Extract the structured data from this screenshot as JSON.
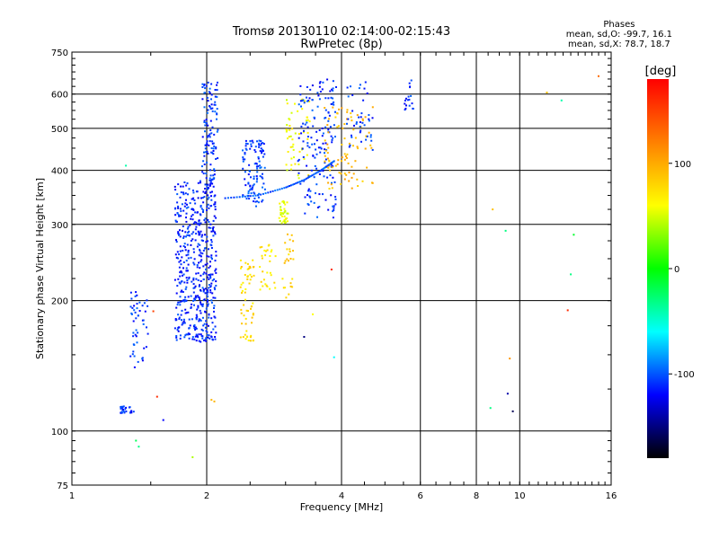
{
  "chart_data": {
    "type": "scatter",
    "title": "Tromsø 20130110 02:14:00-02:15:43",
    "subtitle": "RwPretec (8p)",
    "xlabel": "Frequency [MHz]",
    "ylabel": "Stationary phase Virtual Height [km]",
    "x_scale": "log",
    "y_scale": "log",
    "xlim": [
      1,
      16
    ],
    "ylim": [
      75,
      750
    ],
    "x_ticks": [
      1,
      2,
      4,
      6,
      8,
      10,
      16
    ],
    "y_ticks": [
      75,
      100,
      200,
      300,
      400,
      500,
      600,
      750
    ],
    "grid": true,
    "phase_stats": {
      "header": "Phases",
      "o_line": "mean, sd,O: -99.7, 16.1",
      "x_line": "mean, sd,X:  78.7, 18.7"
    },
    "colorbar": {
      "label": "[deg]",
      "range": [
        -180,
        180
      ],
      "ticks": [
        100,
        0,
        -100
      ],
      "colors": [
        "#ff0000",
        "#ff8000",
        "#ffff00",
        "#00ff00",
        "#00ffff",
        "#0000ff",
        "#000000"
      ]
    },
    "clusters": [
      {
        "fmin": 1.28,
        "fmax": 1.38,
        "hmin": 110,
        "hmax": 114,
        "n": 25,
        "phase": -110
      },
      {
        "fmin": 1.35,
        "fmax": 1.48,
        "hmin": 140,
        "hmax": 210,
        "n": 50,
        "phase": -108
      },
      {
        "fmin": 1.7,
        "fmax": 2.1,
        "hmin": 160,
        "hmax": 380,
        "n": 520,
        "phase": -112
      },
      {
        "fmin": 1.95,
        "fmax": 2.12,
        "hmin": 380,
        "hmax": 650,
        "n": 110,
        "phase": -108
      },
      {
        "fmin": 2.4,
        "fmax": 2.7,
        "hmin": 330,
        "hmax": 470,
        "n": 110,
        "phase": -106
      },
      {
        "fmin": 2.38,
        "fmax": 2.55,
        "hmin": 160,
        "hmax": 250,
        "n": 60,
        "phase": 75
      },
      {
        "fmin": 2.6,
        "fmax": 2.85,
        "hmin": 210,
        "hmax": 270,
        "n": 30,
        "phase": 70
      },
      {
        "fmin": 2.9,
        "fmax": 3.05,
        "hmin": 300,
        "hmax": 340,
        "n": 35,
        "phase": 55
      },
      {
        "fmin": 2.95,
        "fmax": 3.15,
        "hmin": 200,
        "hmax": 300,
        "n": 25,
        "phase": 80
      },
      {
        "fmin": 3.0,
        "fmax": 3.4,
        "hmin": 380,
        "hmax": 600,
        "n": 55,
        "phase": 60
      },
      {
        "fmin": 3.2,
        "fmax": 3.9,
        "hmin": 310,
        "hmax": 650,
        "n": 160,
        "phase": -110
      },
      {
        "fmin": 3.6,
        "fmax": 4.7,
        "hmin": 360,
        "hmax": 560,
        "n": 90,
        "phase": 92
      },
      {
        "fmin": 4.1,
        "fmax": 4.7,
        "hmin": 440,
        "hmax": 650,
        "n": 40,
        "phase": -108
      },
      {
        "fmin": 5.5,
        "fmax": 5.8,
        "hmin": 550,
        "hmax": 650,
        "n": 18,
        "phase": -112
      }
    ],
    "trace": {
      "x": [
        2.2,
        2.6,
        3.0,
        3.3,
        3.6,
        3.85
      ],
      "y": [
        345,
        350,
        365,
        380,
        400,
        420
      ],
      "n": 60,
      "phase": -100
    },
    "sparse_points": [
      {
        "x": 1.32,
        "y": 410,
        "phase": -40
      },
      {
        "x": 1.39,
        "y": 95,
        "phase": -20
      },
      {
        "x": 1.41,
        "y": 92,
        "phase": -30
      },
      {
        "x": 1.52,
        "y": 189,
        "phase": 150
      },
      {
        "x": 1.55,
        "y": 120,
        "phase": 160
      },
      {
        "x": 1.6,
        "y": 106,
        "phase": -120
      },
      {
        "x": 1.86,
        "y": 87,
        "phase": 40
      },
      {
        "x": 2.05,
        "y": 118,
        "phase": 95
      },
      {
        "x": 2.08,
        "y": 117,
        "phase": 95
      },
      {
        "x": 3.3,
        "y": 165,
        "phase": -150
      },
      {
        "x": 3.45,
        "y": 186,
        "phase": 60
      },
      {
        "x": 3.8,
        "y": 236,
        "phase": 160
      },
      {
        "x": 3.85,
        "y": 148,
        "phase": -60
      },
      {
        "x": 8.7,
        "y": 325,
        "phase": 90
      },
      {
        "x": 8.6,
        "y": 113,
        "phase": -30
      },
      {
        "x": 9.3,
        "y": 290,
        "phase": -30
      },
      {
        "x": 9.4,
        "y": 122,
        "phase": -140
      },
      {
        "x": 9.5,
        "y": 147,
        "phase": 110
      },
      {
        "x": 9.65,
        "y": 111,
        "phase": -160
      },
      {
        "x": 11.5,
        "y": 605,
        "phase": 90
      },
      {
        "x": 12.4,
        "y": 580,
        "phase": -40
      },
      {
        "x": 12.8,
        "y": 190,
        "phase": 160
      },
      {
        "x": 13.0,
        "y": 230,
        "phase": -30
      },
      {
        "x": 13.2,
        "y": 284,
        "phase": -10
      },
      {
        "x": 15.0,
        "y": 660,
        "phase": 130
      }
    ]
  }
}
